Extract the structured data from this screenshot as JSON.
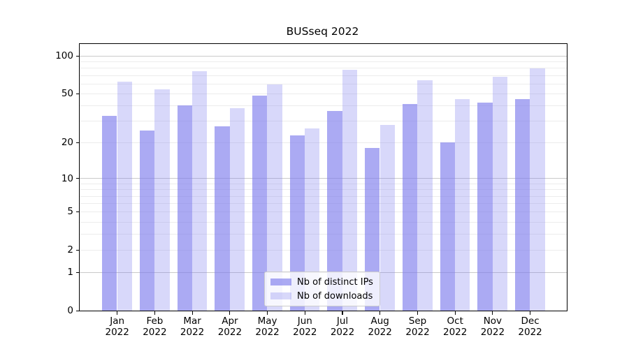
{
  "title": "BUSseq 2022",
  "legend": {
    "items": [
      {
        "label": "Nb of distinct IPs",
        "series_key": "ips"
      },
      {
        "label": "Nb of downloads",
        "series_key": "downloads"
      }
    ],
    "position": "lower center"
  },
  "colors": {
    "bar_base": "#7e7ded",
    "ips_alpha": 0.65,
    "downloads_alpha": 0.3,
    "grid_major": "#c9c9c9",
    "grid_minor": "#ececec",
    "axis": "#000000"
  },
  "chart_data": {
    "type": "bar",
    "title": "BUSseq 2022",
    "xlabel": "",
    "ylabel": "",
    "y_scale": "log1p",
    "ylim": [
      0,
      124
    ],
    "grid": "on",
    "legend_position": "lower center",
    "categories": [
      "Jan",
      "Feb",
      "Mar",
      "Apr",
      "May",
      "Jun",
      "Jul",
      "Aug",
      "Sep",
      "Oct",
      "Nov",
      "Dec"
    ],
    "year_label": "2022",
    "y_ticks": [
      0,
      1,
      2,
      5,
      10,
      20,
      50,
      100
    ],
    "grid_major_values": [
      1,
      10,
      100
    ],
    "grid_minor_values": [
      2,
      3,
      4,
      5,
      6,
      7,
      8,
      9,
      20,
      30,
      40,
      50,
      60,
      70,
      80,
      90
    ],
    "series": [
      {
        "name": "Nb of distinct IPs",
        "values": [
          33,
          25,
          40,
          27,
          48,
          23,
          36,
          18,
          41,
          20,
          42,
          45
        ]
      },
      {
        "name": "Nb of downloads",
        "values": [
          62,
          54,
          75,
          38,
          59,
          26,
          77,
          28,
          64,
          45,
          68,
          79
        ]
      }
    ]
  }
}
